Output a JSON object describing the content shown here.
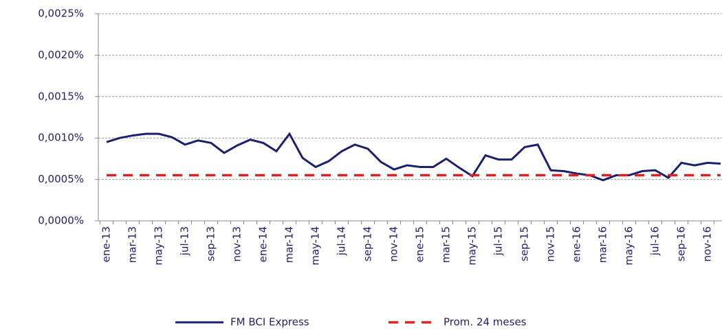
{
  "chart_data": {
    "type": "line",
    "categories": [
      "ene-13",
      null,
      "mar-13",
      null,
      "may-13",
      null,
      "jul-13",
      null,
      "sep-13",
      null,
      "nov-13",
      null,
      "ene-14",
      null,
      "mar-14",
      null,
      "may-14",
      null,
      "jul-14",
      null,
      "sep-14",
      null,
      "nov-14",
      null,
      "ene-15",
      null,
      "mar-15",
      null,
      "may-15",
      null,
      "jul-15",
      null,
      "sep-15",
      null,
      "nov-15",
      null,
      "ene-16",
      null,
      "mar-16",
      null,
      "may-16",
      null,
      "jul-16",
      null,
      "sep-16",
      null,
      "nov-16",
      null
    ],
    "series": [
      {
        "name": "FM BCI Express",
        "color": "#1a1f6e",
        "dash": false,
        "values": [
          0.00095,
          0.001,
          0.00103,
          0.00105,
          0.00105,
          0.00101,
          0.00092,
          0.00097,
          0.00094,
          0.00082,
          0.00091,
          0.00098,
          0.00094,
          0.00084,
          0.00105,
          0.00076,
          0.00065,
          0.00072,
          0.00084,
          0.00092,
          0.00087,
          0.00071,
          0.00062,
          0.00067,
          0.00065,
          0.00065,
          0.00075,
          0.00064,
          0.00054,
          0.00079,
          0.00074,
          0.00074,
          0.00089,
          0.00092,
          0.00061,
          0.0006,
          0.00057,
          0.00055,
          0.00049,
          0.00055,
          0.00055,
          0.0006,
          0.00061,
          0.00052,
          0.0007,
          0.00067,
          0.0007,
          0.00069
        ]
      },
      {
        "name": "Prom. 24 meses",
        "color": "#e02020",
        "dash": true,
        "values": [
          0.00055,
          0.00055,
          0.00055,
          0.00055,
          0.00055,
          0.00055,
          0.00055,
          0.00055,
          0.00055,
          0.00055,
          0.00055,
          0.00055,
          0.00055,
          0.00055,
          0.00055,
          0.00055,
          0.00055,
          0.00055,
          0.00055,
          0.00055,
          0.00055,
          0.00055,
          0.00055,
          0.00055,
          0.00055,
          0.00055,
          0.00055,
          0.00055,
          0.00055,
          0.00055,
          0.00055,
          0.00055,
          0.00055,
          0.00055,
          0.00055,
          0.00055,
          0.00055,
          0.00055,
          0.00055,
          0.00055,
          0.00055,
          0.00055,
          0.00055,
          0.00055,
          0.00055,
          0.00055,
          0.00055,
          0.00055
        ]
      }
    ],
    "ylim": [
      0,
      0.0025
    ],
    "yticks": [
      {
        "value": 0,
        "label": "0,0000%"
      },
      {
        "value": 0.0005,
        "label": "0,0005%"
      },
      {
        "value": 0.001,
        "label": "0,0010%"
      },
      {
        "value": 0.0015,
        "label": "0,0015%"
      },
      {
        "value": 0.002,
        "label": "0,0020%"
      },
      {
        "value": 0.0025,
        "label": "0,0025%"
      }
    ],
    "grid": true
  }
}
